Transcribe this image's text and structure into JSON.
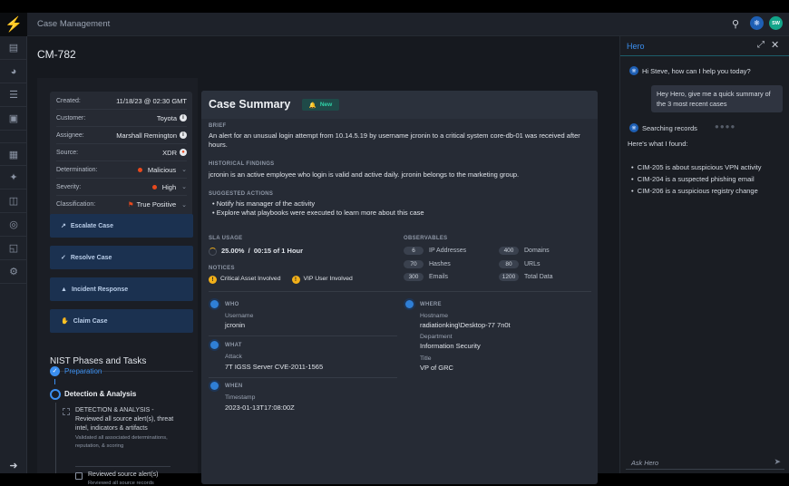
{
  "app": {
    "title": "Case Management",
    "user_initials": "SW"
  },
  "sidebar": {
    "items": [
      "table-icon",
      "gauge-icon",
      "list-icon",
      "image-search-icon",
      "grid-icon",
      "sparkle-icon",
      "dashboard-icon",
      "users-icon",
      "book-icon",
      "settings-icon"
    ],
    "collapse_icon": "arrow-right-icon"
  },
  "case": {
    "id": "CM-782",
    "details": [
      {
        "label": "Created:",
        "value": "11/18/23 @ 02:30 GMT"
      },
      {
        "label": "Customer:",
        "value": "Toyota"
      },
      {
        "label": "Assignee:",
        "value": "Marshall Remington"
      },
      {
        "label": "Source:",
        "value": "XDR"
      },
      {
        "label": "Determination:",
        "value": "Malicious"
      },
      {
        "label": "Severity:",
        "value": "High"
      },
      {
        "label": "Classification:",
        "value": "True Positive"
      }
    ],
    "actions": [
      "Escalate Case",
      "Resolve Case",
      "Incident Response",
      "Claim Case"
    ]
  },
  "nist": {
    "title": "NIST Phases and Tasks",
    "phases": [
      {
        "label": "Preparation",
        "status": "complete"
      },
      {
        "label": "Detection & Analysis",
        "status": "active"
      }
    ],
    "task": {
      "title": "DETECTION & ANALYSIS - Reviewed all source alert(s), threat intel, indicators & artifacts",
      "desc": "Validated all associated determinations, reputation, & scoring"
    },
    "subtask": {
      "title": "Reviewed source alert(s)",
      "desc": "Reviewed all source records"
    }
  },
  "summary": {
    "title": "Case Summary",
    "badge": "New",
    "brief_label": "BRIEF",
    "brief": "An alert for an unusual login attempt from 10.14.5.19 by username jcronin to a critical system core-db-01 was received after hours.",
    "hist_label": "HISTORICAL FINDINGS",
    "hist": "jcronin is an active employee who login is valid and active daily. jcronin belongs to the marketing group.",
    "actions_label": "SUGGESTED ACTIONS",
    "actions": [
      "Notify his manager of the activity",
      "Explore what playbooks were executed to learn more about this case"
    ],
    "sla_label": "SLA USAGE",
    "sla": "25.00%  /  00:15 of 1 Hour",
    "sla_percent": 25,
    "notices_label": "NOTICES",
    "notices": [
      "Critical Asset Involved",
      "VIP User Involved"
    ],
    "obs_label": "OBSERVABLES",
    "observables": [
      {
        "count": "6",
        "label": "IP Addresses"
      },
      {
        "count": "400",
        "label": "Domains"
      },
      {
        "count": "70",
        "label": "Hashes"
      },
      {
        "count": "80",
        "label": "URLs"
      },
      {
        "count": "300",
        "label": "Emails"
      },
      {
        "count": "1200",
        "label": "Total Data"
      }
    ],
    "who": {
      "label": "WHO",
      "field": "Username",
      "value": "jcronin"
    },
    "what": {
      "label": "WHAT",
      "field": "Attack",
      "value": "7T IGSS Server CVE-2011-1565"
    },
    "when": {
      "label": "WHEN",
      "field": "Timestamp",
      "value": "2023-01-13T17:08:00Z"
    },
    "where": {
      "label": "WHERE",
      "fields": [
        {
          "field": "Hostname",
          "value": "radiationking\\Desktop-77 7n0t"
        },
        {
          "field": "Department",
          "value": "Information Security"
        },
        {
          "field": "Title",
          "value": "VP of GRC"
        }
      ]
    }
  },
  "chat": {
    "title": "Hero",
    "greeting": "Hi Steve, how can I help you today?",
    "user_msg": "Hey Hero, give me a quick summary of the 3 most recent cases",
    "searching": "Searching records",
    "found": "Here's what I found:",
    "results": [
      "CIM-205 is about suspicious VPN activity",
      "CIM-204 is a suspected phishing email",
      "CIM-206 is a suspicious registry change"
    ],
    "input_placeholder": "Ask Hero"
  },
  "colors": {
    "accent": "#2f8cf0",
    "danger": "#e8491d",
    "warning": "#f2b019",
    "success": "#19c39a"
  }
}
